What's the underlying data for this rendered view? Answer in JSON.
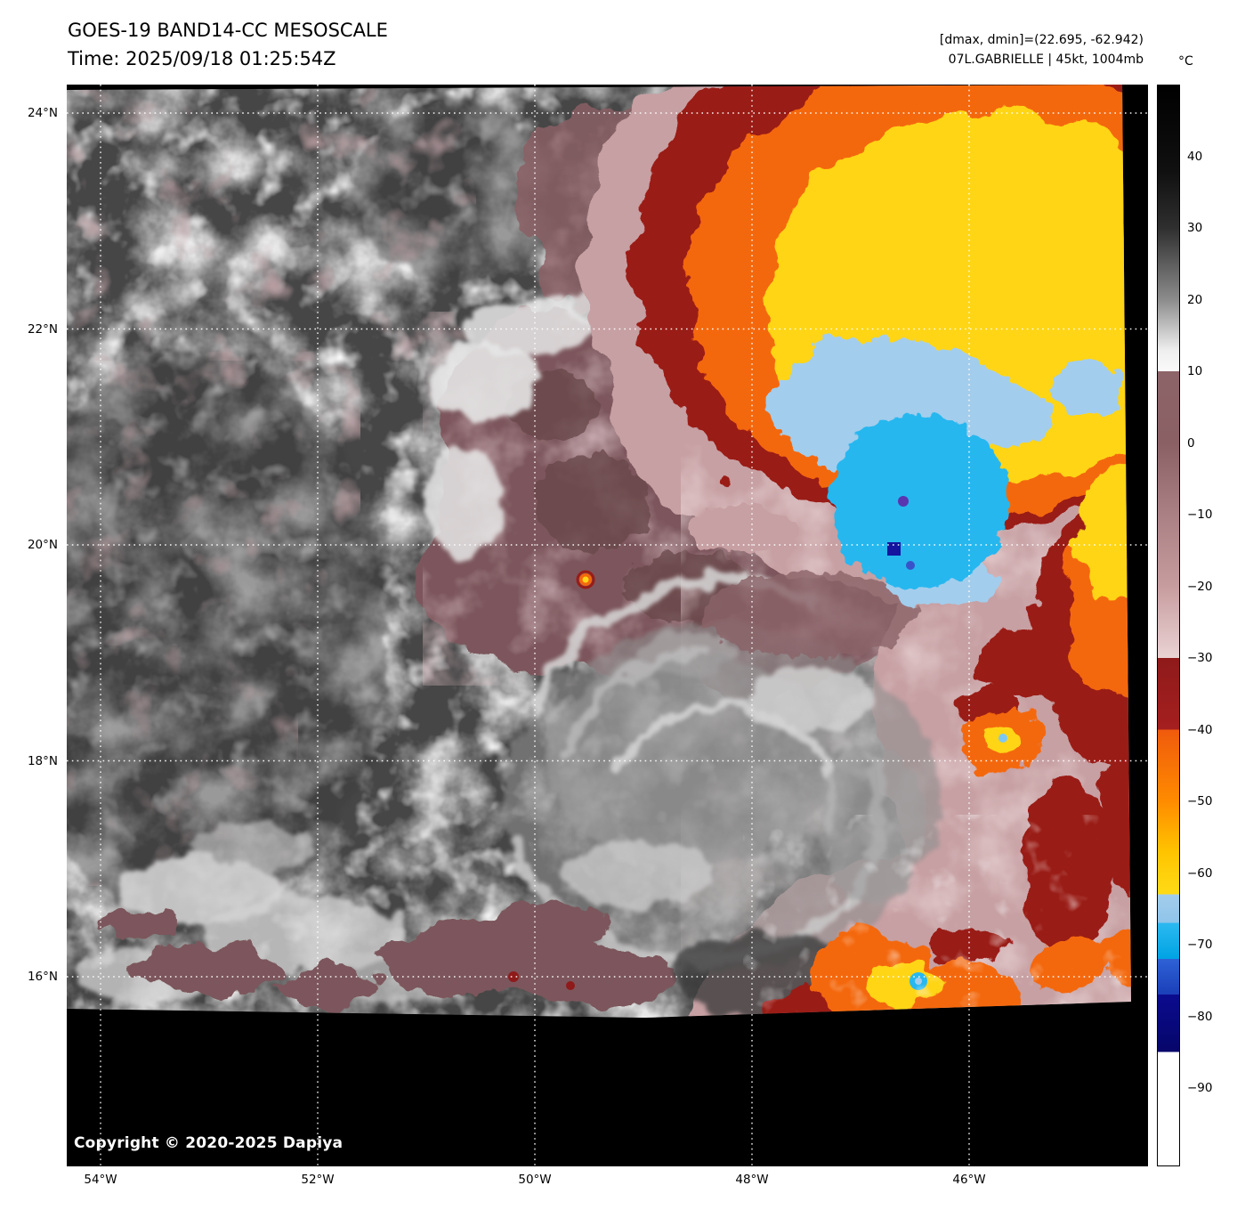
{
  "header": {
    "title": "GOES-19 BAND14-CC MESOSCALE",
    "time_line": "Time: 2025/09/18 01:25:54Z",
    "dmax_dmin_line": "[dmax, dmin]=(22.695, -62.942)",
    "storm_line": "07L.GABRIELLE | 45kt, 1004mb"
  },
  "map": {
    "copyright": "Copyright © 2020-2025 Dapiya",
    "lat_labels": [
      {
        "label": "24°N",
        "value": 24
      },
      {
        "label": "22°N",
        "value": 22
      },
      {
        "label": "20°N",
        "value": 20
      },
      {
        "label": "18°N",
        "value": 18
      },
      {
        "label": "16°N",
        "value": 16
      }
    ],
    "lon_labels": [
      {
        "label": "54°W",
        "value": 54
      },
      {
        "label": "52°W",
        "value": 52
      },
      {
        "label": "50°W",
        "value": 50
      },
      {
        "label": "48°W",
        "value": 48
      },
      {
        "label": "46°W",
        "value": 46
      }
    ]
  },
  "colorbar": {
    "unit": "°C",
    "ticks": [
      {
        "label": "40",
        "value": 40
      },
      {
        "label": "30",
        "value": 30
      },
      {
        "label": "20",
        "value": 20
      },
      {
        "label": "10",
        "value": 10
      },
      {
        "label": "0",
        "value": 0
      },
      {
        "label": "−10",
        "value": -10
      },
      {
        "label": "−20",
        "value": -20
      },
      {
        "label": "−30",
        "value": -30
      },
      {
        "label": "−40",
        "value": -40
      },
      {
        "label": "−50",
        "value": -50
      },
      {
        "label": "−60",
        "value": -60
      },
      {
        "label": "−70",
        "value": -70
      },
      {
        "label": "−80",
        "value": -80
      },
      {
        "label": "−90",
        "value": -90
      }
    ],
    "stops": [
      {
        "value": 50,
        "color": "#000000"
      },
      {
        "value": 38,
        "color": "#101010"
      },
      {
        "value": 30,
        "color": "#2f2f2f"
      },
      {
        "value": 20,
        "color": "#8c8c8c"
      },
      {
        "value": 13,
        "color": "#eeeeee"
      },
      {
        "value": 10,
        "color": "#fafafa"
      },
      {
        "value": 10,
        "color": "#8d6468"
      },
      {
        "value": 0,
        "color": "#8a6064"
      },
      {
        "value": -10,
        "color": "#aa8084"
      },
      {
        "value": -20,
        "color": "#c79c9e"
      },
      {
        "value": -30,
        "color": "#ead3d4"
      },
      {
        "value": -30,
        "color": "#8f1a1a"
      },
      {
        "value": -40,
        "color": "#a51f1f"
      },
      {
        "value": -40,
        "color": "#ef5a0c"
      },
      {
        "value": -50,
        "color": "#ff8b00"
      },
      {
        "value": -57,
        "color": "#ffc300"
      },
      {
        "value": -63,
        "color": "#ffdb16"
      },
      {
        "value": -63,
        "color": "#a3cdec"
      },
      {
        "value": -67,
        "color": "#8fc4ea"
      },
      {
        "value": -67,
        "color": "#2cb9f0"
      },
      {
        "value": -72,
        "color": "#00a3e4"
      },
      {
        "value": -72,
        "color": "#2f62d6"
      },
      {
        "value": -77,
        "color": "#1b3fb8"
      },
      {
        "value": -77,
        "color": "#0b0b8f"
      },
      {
        "value": -85,
        "color": "#06066a"
      },
      {
        "value": -85,
        "color": "#ffffff"
      },
      {
        "value": -101,
        "color": "#ffffff"
      }
    ]
  },
  "palette": {
    "background": "#ffffff",
    "ocean_gray": "#464646",
    "cloud_gray": "#cccccc",
    "mauve_cloud": "#7b575b",
    "pink_shield": "#c7a0a3",
    "cold_dark_red": "#9a1c17",
    "cold_orange": "#f4680e",
    "cold_yellow": "#ffd519",
    "cold_light_blue": "#a3cdec",
    "cold_cyan": "#28b7ef",
    "cold_navy": "#14149e",
    "grid_white": "#ffffff"
  }
}
